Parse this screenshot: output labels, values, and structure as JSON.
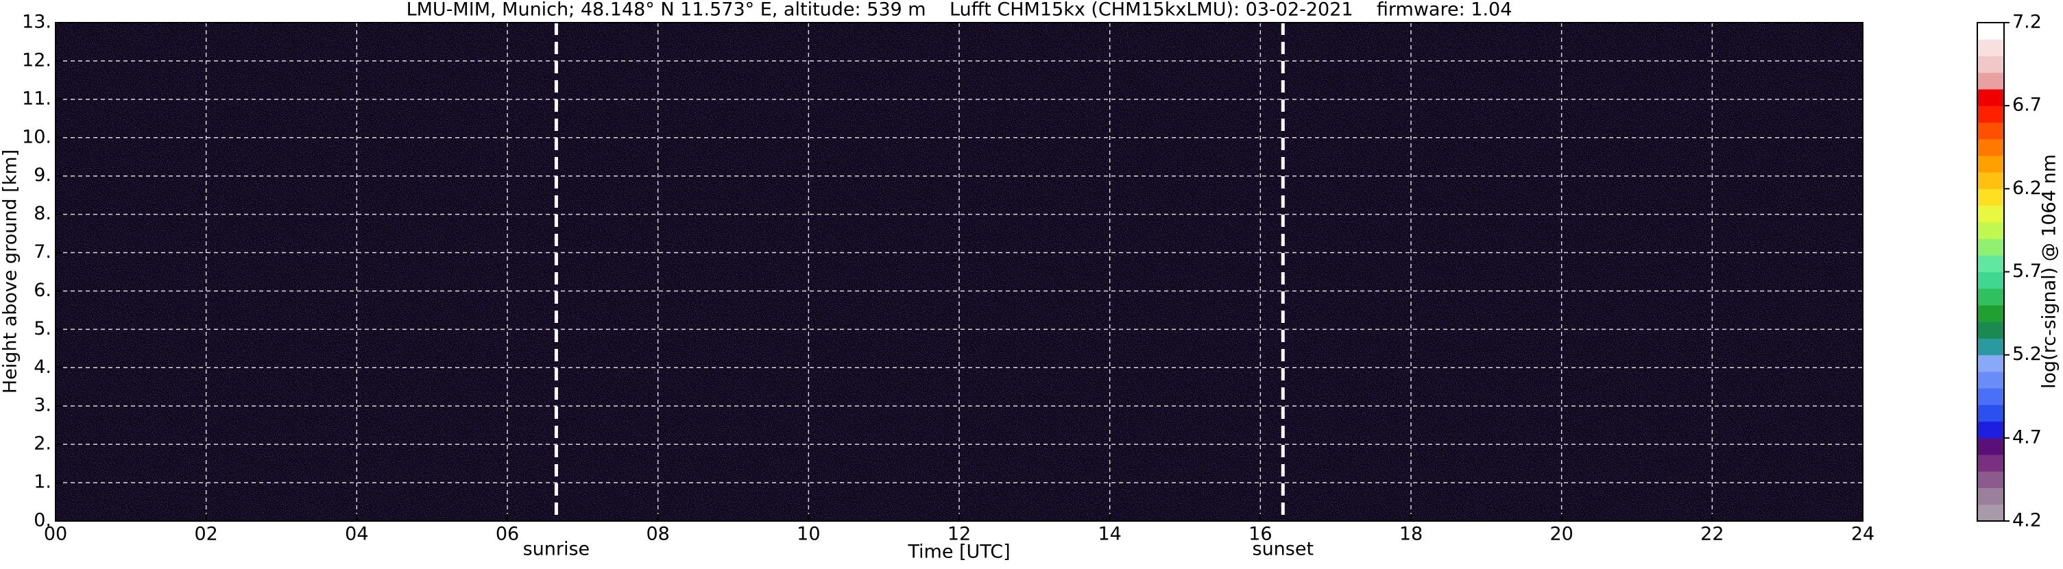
{
  "chart_data": {
    "type": "heatmap",
    "title": "LMU-MIM, Munich; 48.148° N 11.573° E, altitude: 539 m    Lufft CHM15kx (CHM15kxLMU): 03-02-2021    firmware: 1.04",
    "x_label": "Time [UTC]",
    "y_label": "Height above ground [km]",
    "xlim": [
      0,
      24
    ],
    "xticks": [
      {
        "value": 0,
        "label": "00"
      },
      {
        "value": 2,
        "label": "02"
      },
      {
        "value": 4,
        "label": "04"
      },
      {
        "value": 6,
        "label": "06"
      },
      {
        "value": 8,
        "label": "08"
      },
      {
        "value": 10,
        "label": "10"
      },
      {
        "value": 12,
        "label": "12"
      },
      {
        "value": 14,
        "label": "14"
      },
      {
        "value": 16,
        "label": "16"
      },
      {
        "value": 18,
        "label": "18"
      },
      {
        "value": 20,
        "label": "20"
      },
      {
        "value": 22,
        "label": "22"
      },
      {
        "value": 24,
        "label": "24"
      }
    ],
    "ylim": [
      0,
      13
    ],
    "yticks": [
      {
        "value": 0,
        "label": "0."
      },
      {
        "value": 1,
        "label": "1."
      },
      {
        "value": 2,
        "label": "2."
      },
      {
        "value": 3,
        "label": "3."
      },
      {
        "value": 4,
        "label": "4."
      },
      {
        "value": 5,
        "label": "5."
      },
      {
        "value": 6,
        "label": "6."
      },
      {
        "value": 7,
        "label": "7."
      },
      {
        "value": 8,
        "label": "8."
      },
      {
        "value": 9,
        "label": "9."
      },
      {
        "value": 10,
        "label": "10."
      },
      {
        "value": 11,
        "label": "11."
      },
      {
        "value": 12,
        "label": "12."
      },
      {
        "value": 13,
        "label": "13."
      }
    ],
    "grid": true,
    "annotations": [
      {
        "label": "sunrise",
        "x": 6.65
      },
      {
        "label": "sunset",
        "x": 16.3
      }
    ],
    "colorbar": {
      "label": "log(rc-signal) @ 1064 nm",
      "lim": [
        4.2,
        7.2
      ],
      "ticks": [
        4.2,
        4.7,
        5.2,
        5.7,
        6.2,
        6.7,
        7.2
      ],
      "colors": [
        "#a89aa8",
        "#9c7f9c",
        "#8c5a8c",
        "#7a2f80",
        "#5a1078",
        "#1e1ee0",
        "#2a50f0",
        "#4a70f8",
        "#6a8cf8",
        "#8aa8f8",
        "#2a9aa0",
        "#1a8a50",
        "#20a030",
        "#30c060",
        "#40d890",
        "#60e8a0",
        "#90f070",
        "#c0f850",
        "#e8f840",
        "#ffe020",
        "#ffc010",
        "#ffa000",
        "#ff7800",
        "#ff5000",
        "#ff2000",
        "#f00000",
        "#e8a0a0",
        "#f0c8c8",
        "#f8e0e0",
        "#ffffff"
      ]
    }
  }
}
